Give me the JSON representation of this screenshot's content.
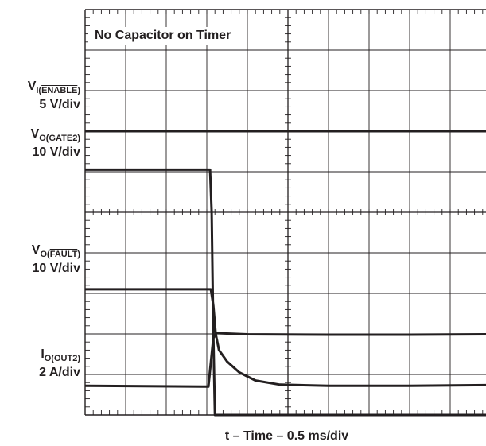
{
  "chart_data": {
    "type": "line",
    "title": "",
    "annotation": "No Capacitor on Timer",
    "xlabel": "t – Time – 0.5 ms/div",
    "x_units": "ms",
    "xlim": [
      0,
      5
    ],
    "ylim_divisions": [
      0,
      10
    ],
    "grid": true,
    "colors": {
      "trace": "#231f20",
      "grid": "#231f20",
      "background": "#ffffff"
    },
    "channels": [
      {
        "name_main": "V",
        "name_sub": "I(",
        "name_sub_overline": "ENABLE",
        "name_sub_end": ")",
        "scale": "5 V/div",
        "points": [
          [
            0,
            7.0
          ],
          [
            5,
            7.0
          ]
        ]
      },
      {
        "name_main": "V",
        "name_sub": "O(GATE2)",
        "name_sub_overline": "",
        "name_sub_end": "",
        "scale": "10 V/div",
        "points": [
          [
            0,
            6.05
          ],
          [
            1.54,
            6.05
          ],
          [
            1.56,
            5.0
          ],
          [
            1.58,
            2.0
          ],
          [
            1.6,
            0.0
          ],
          [
            5,
            0.0
          ]
        ]
      },
      {
        "name_main": "V",
        "name_sub": "O(",
        "name_sub_overline": "FAULT",
        "name_sub_end": ")",
        "scale": "10 V/div",
        "points": [
          [
            0,
            3.1
          ],
          [
            1.55,
            3.1
          ],
          [
            1.58,
            2.7
          ],
          [
            1.61,
            2.0
          ],
          [
            1.65,
            1.6
          ],
          [
            1.75,
            1.32
          ],
          [
            1.9,
            1.05
          ],
          [
            2.1,
            0.85
          ],
          [
            2.4,
            0.75
          ],
          [
            3.0,
            0.72
          ],
          [
            4.0,
            0.72
          ],
          [
            5,
            0.74
          ]
        ]
      },
      {
        "name_main": "I",
        "name_sub": "O(OUT2)",
        "name_sub_overline": "",
        "name_sub_end": "",
        "scale": "2 A/div",
        "points": [
          [
            0,
            0.72
          ],
          [
            1.52,
            0.7
          ],
          [
            1.55,
            1.3
          ],
          [
            1.58,
            1.9
          ],
          [
            1.62,
            2.02
          ],
          [
            2.0,
            1.99
          ],
          [
            3.0,
            1.98
          ],
          [
            4.0,
            1.98
          ],
          [
            5,
            1.99
          ]
        ]
      }
    ]
  }
}
